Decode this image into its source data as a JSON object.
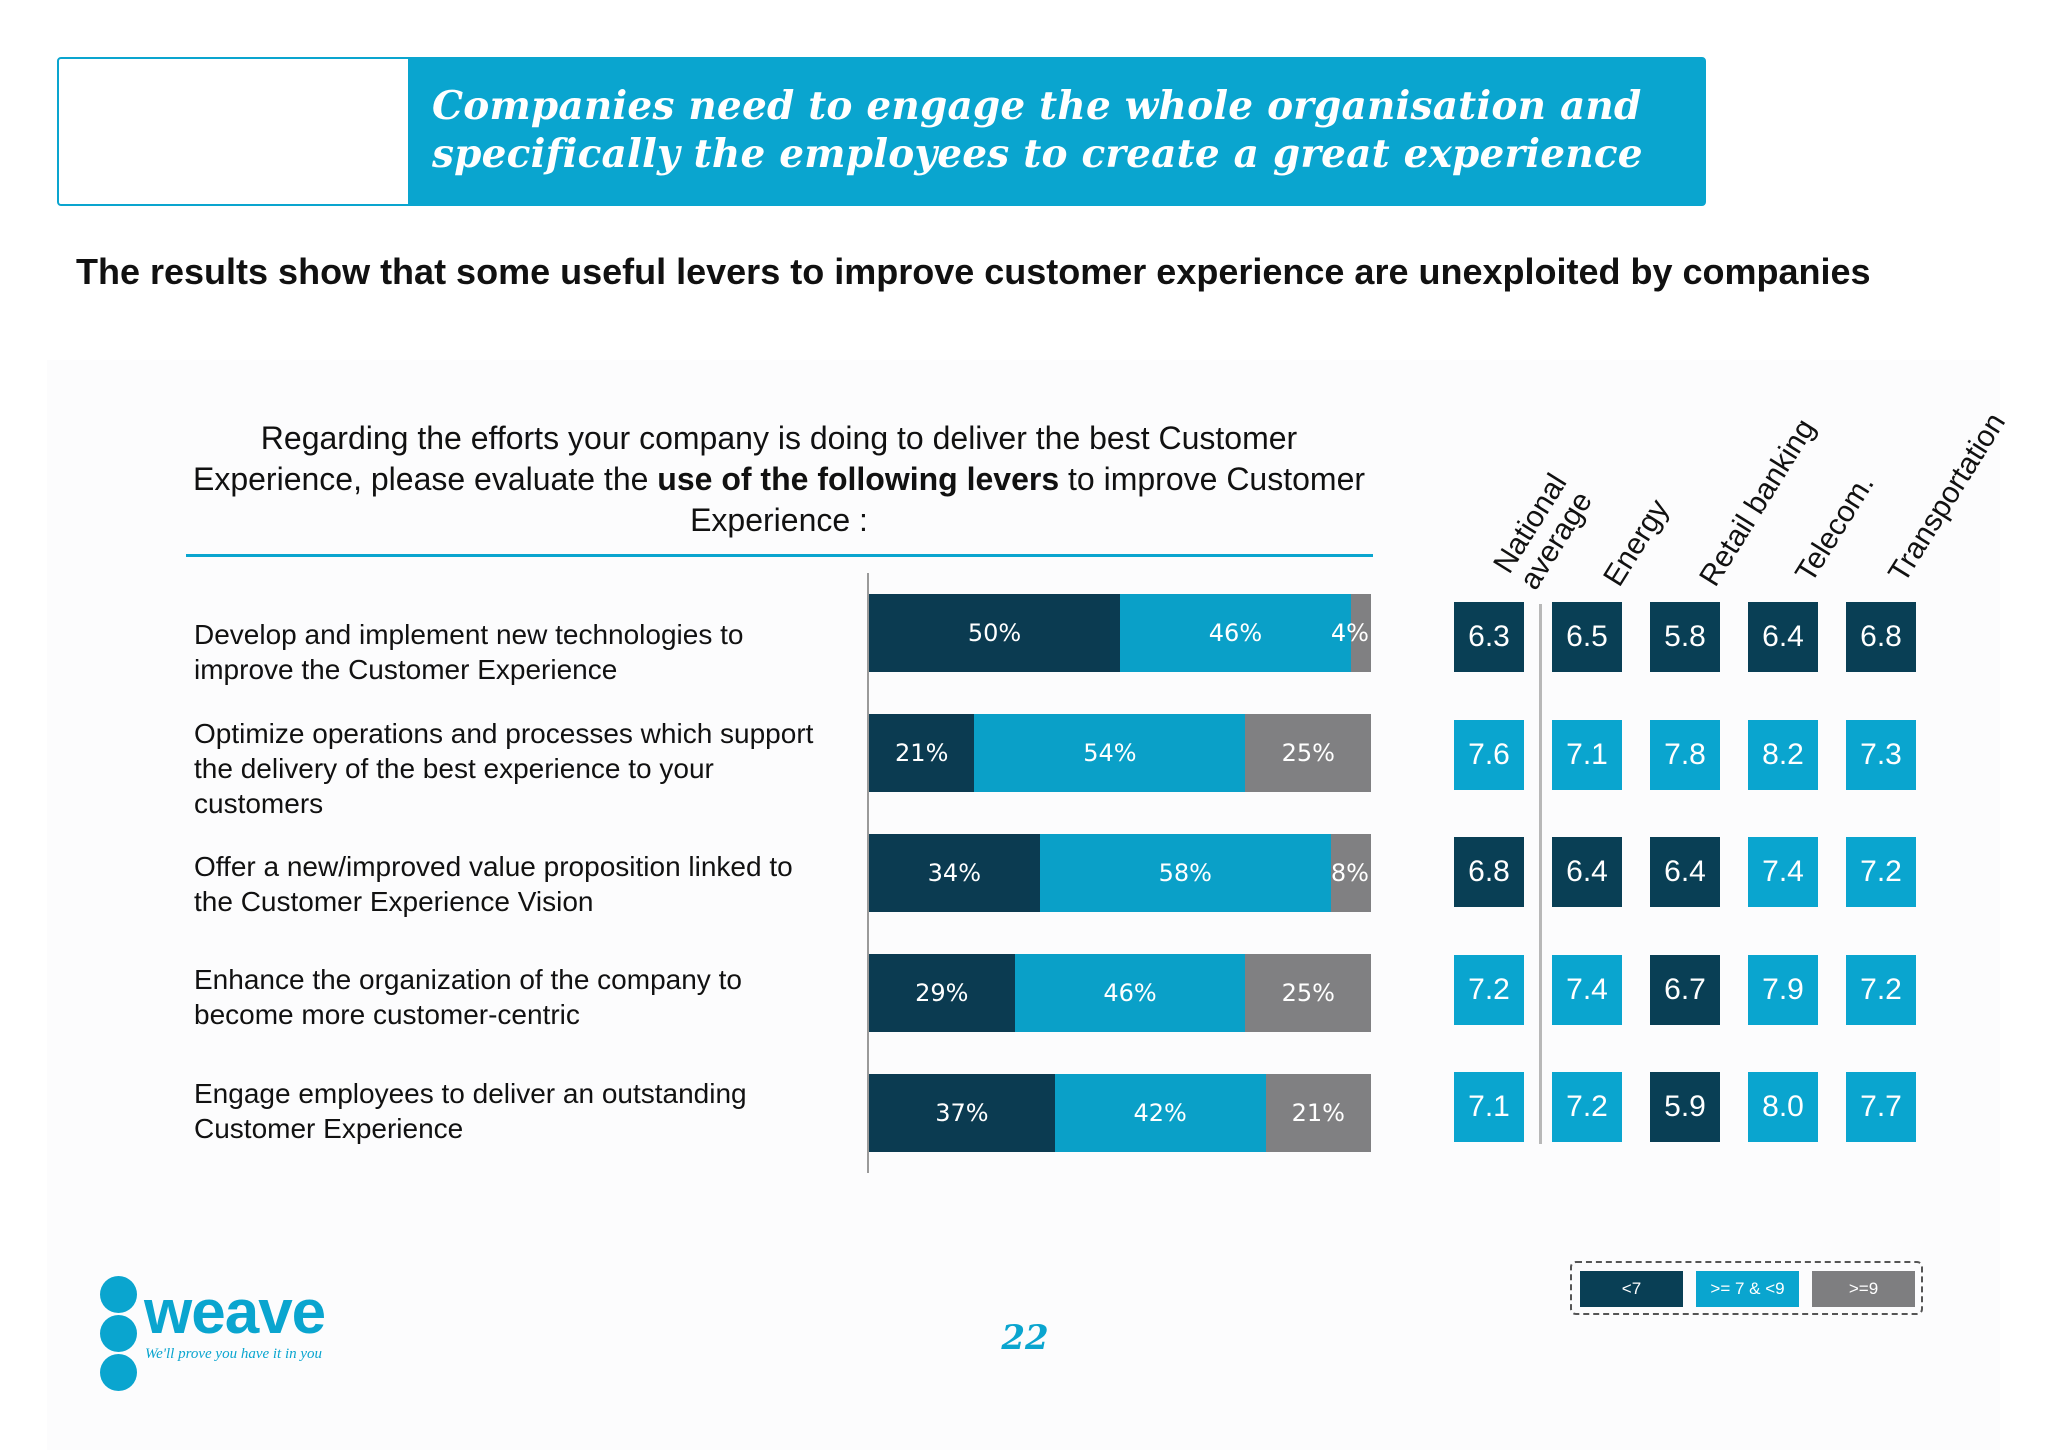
{
  "banner": {
    "title": "Companies need to engage the whole organisation and specifically the employees to create a great experience"
  },
  "headline": "The results show that some useful levers to improve customer experience are unexploited by companies",
  "question": {
    "part1": "Regarding the efforts your company is doing to deliver the best Customer Experience, please evaluate the ",
    "bold": "use of the following levers",
    "part2": " to improve Customer Experience :"
  },
  "levers": [
    "Develop and implement new technologies to improve the Customer Experience",
    "Optimize operations and processes which support the delivery of the best experience to your customers",
    "Offer a new/improved value proposition linked to the Customer Experience Vision",
    "Enhance the organization of the company to become more customer-centric",
    "Engage employees to deliver an outstanding Customer Experience"
  ],
  "sectors": [
    "National average",
    "Energy",
    "Retail banking",
    "Telecom.",
    "Transportation"
  ],
  "colors": {
    "low": "#093f55",
    "mid": "#0aa5cf",
    "high": "#7e7e80",
    "bar_low": "#0b3b51",
    "bar_mid": "#0aa0c8",
    "bar_high": "#808082"
  },
  "chart_data": [
    {
      "type": "bar",
      "orientation": "horizontal",
      "stacked": true,
      "categories": [
        "Develop and implement new technologies to improve the Customer Experience",
        "Optimize operations and processes which support the delivery of the best experience to your customers",
        "Offer a new/improved value proposition linked to the Customer Experience Vision",
        "Enhance the organization of the company to become more customer-centric",
        "Engage employees to deliver an outstanding Customer Experience"
      ],
      "series": [
        {
          "values": [
            50,
            21,
            34,
            29,
            37
          ],
          "labels": [
            "50%",
            "21%",
            "34%",
            "29%",
            "37%"
          ],
          "color": "#0b3b51"
        },
        {
          "values": [
            46,
            54,
            58,
            46,
            42
          ],
          "labels": [
            "46%",
            "54%",
            "58%",
            "46%",
            "42%"
          ],
          "color": "#0aa0c8"
        },
        {
          "values": [
            4,
            25,
            8,
            25,
            21
          ],
          "labels": [
            "4%",
            "25%",
            "8%",
            "25%",
            "21%"
          ],
          "color": "#808082"
        }
      ],
      "xlim": [
        0,
        100
      ],
      "grid": false
    },
    {
      "type": "heatmap",
      "columns": [
        "National average",
        "Energy",
        "Retail banking",
        "Telecom.",
        "Transportation"
      ],
      "values": [
        [
          6.3,
          6.5,
          5.8,
          6.4,
          6.8
        ],
        [
          7.6,
          7.1,
          7.8,
          8.2,
          7.3
        ],
        [
          6.8,
          6.4,
          6.4,
          7.4,
          7.2
        ],
        [
          7.2,
          7.4,
          6.7,
          7.9,
          7.2
        ],
        [
          7.1,
          7.2,
          5.9,
          8.0,
          7.7
        ]
      ],
      "labels": [
        [
          "6.3",
          "6.5",
          "5.8",
          "6.4",
          "6.8"
        ],
        [
          "7.6",
          "7.1",
          "7.8",
          "8.2",
          "7.3"
        ],
        [
          "6.8",
          "6.4",
          "6.4",
          "7.4",
          "7.2"
        ],
        [
          "7.2",
          "7.4",
          "6.7",
          "7.9",
          "7.2"
        ],
        [
          "7.1",
          "7.2",
          "5.9",
          "8.0",
          "7.7"
        ]
      ],
      "thresholds": [
        7,
        9
      ]
    }
  ],
  "legend": [
    {
      "label": "<7",
      "color": "#093f55"
    },
    {
      "label": ">= 7 & <9",
      "color": "#0aa5cf"
    },
    {
      "label": ">=9",
      "color": "#7e7e80"
    }
  ],
  "logo": {
    "name": "weave",
    "tagline": "We'll prove you have it in you"
  },
  "page_number": "22"
}
